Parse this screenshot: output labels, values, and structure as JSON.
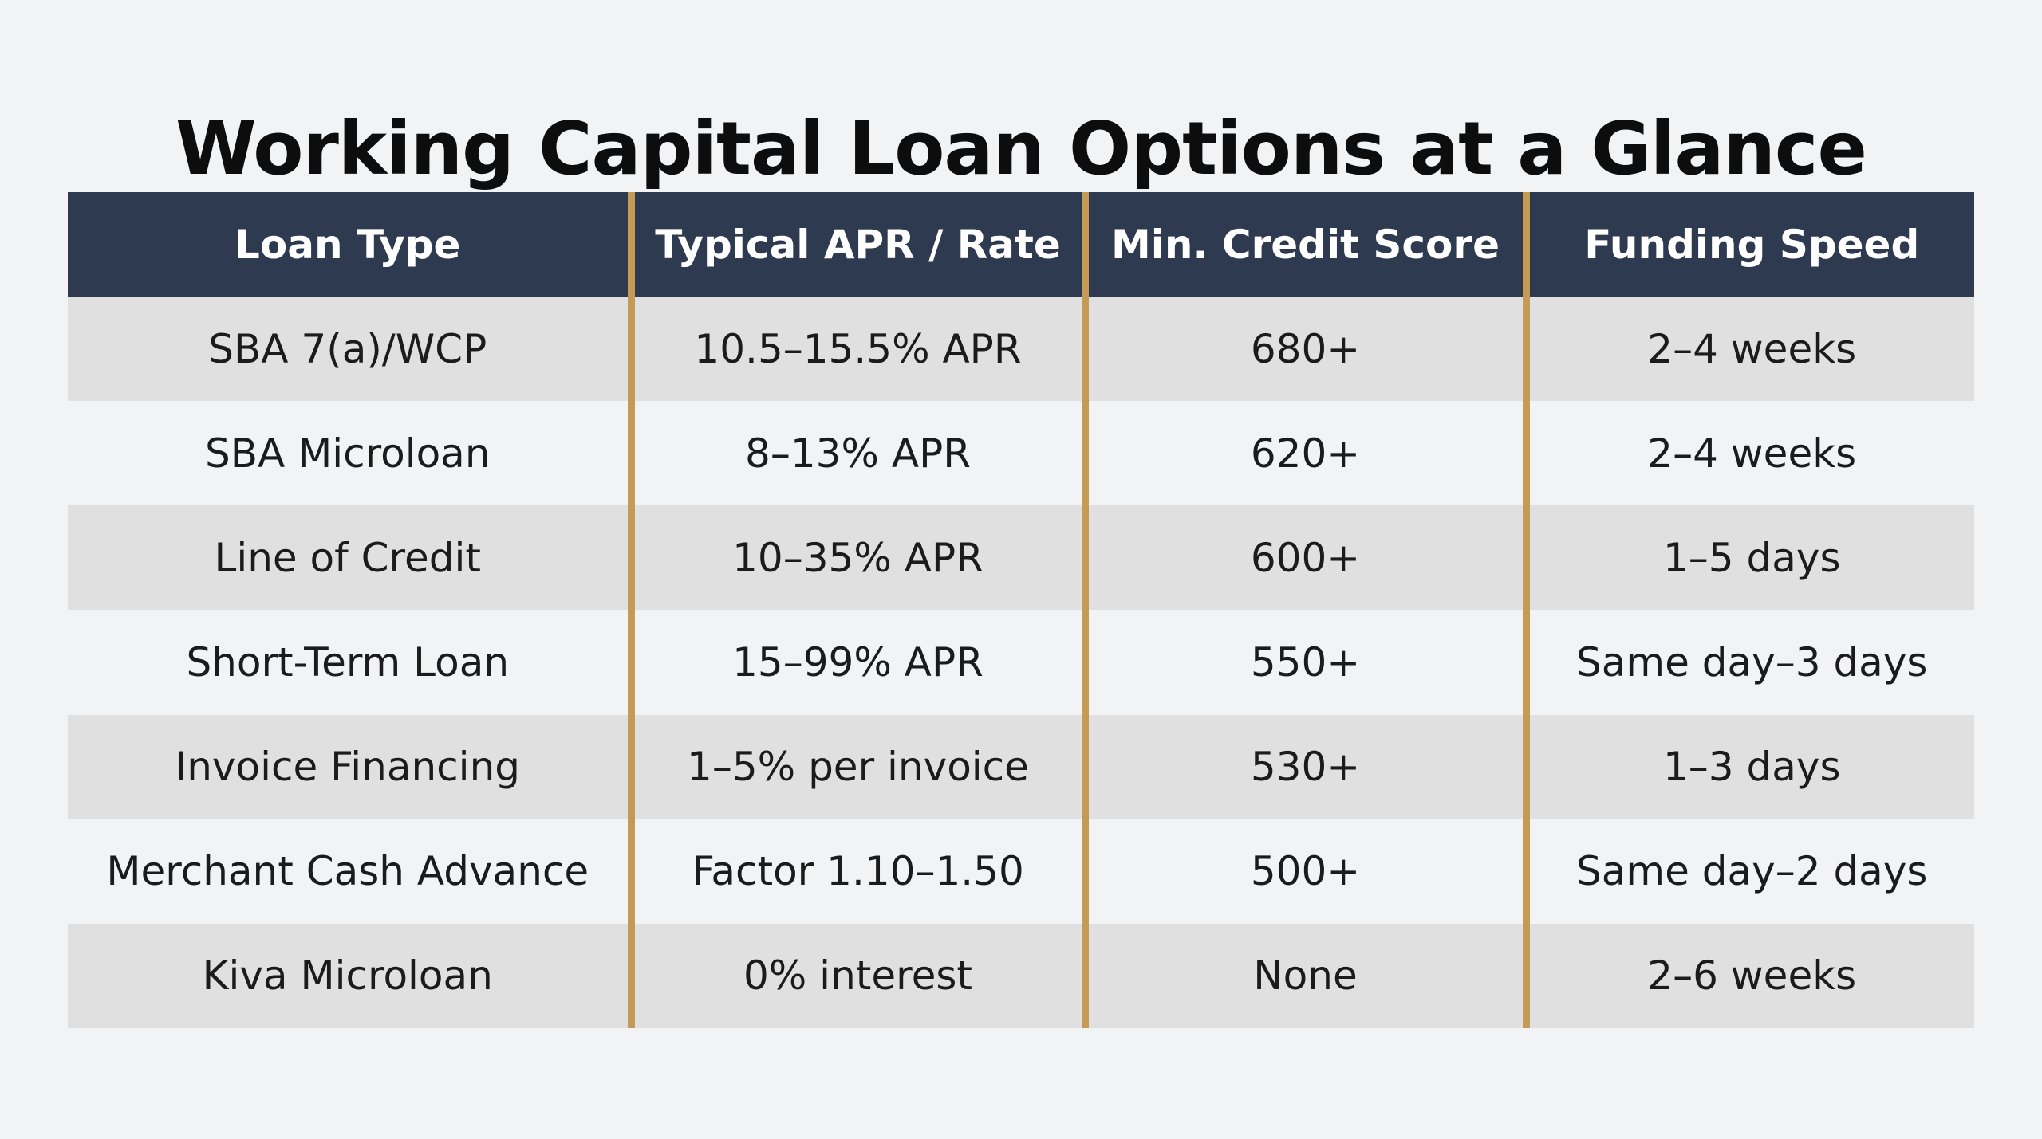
{
  "page": {
    "title": "Working Capital Loan Options at a Glance"
  },
  "chart_data": {
    "type": "table",
    "title": "Working Capital Loan Options at a Glance",
    "columns": [
      "Loan Type",
      "Typical APR / Rate",
      "Min. Credit Score",
      "Funding Speed"
    ],
    "rows": [
      [
        "SBA 7(a)/WCP",
        "10.5–15.5% APR",
        "680+",
        "2–4 weeks"
      ],
      [
        "SBA Microloan",
        "8–13% APR",
        "620+",
        "2–4 weeks"
      ],
      [
        "Line of Credit",
        "10–35% APR",
        "600+",
        "1–5 days"
      ],
      [
        "Short-Term Loan",
        "15–99% APR",
        "550+",
        "Same day–3 days"
      ],
      [
        "Invoice Financing",
        "1–5% per invoice",
        "530+",
        "1–3 days"
      ],
      [
        "Merchant Cash Advance",
        "Factor 1.10–1.50",
        "500+",
        "Same day–2 days"
      ],
      [
        "Kiva Microloan",
        "0% interest",
        "None",
        "2–6 weeks"
      ]
    ]
  },
  "colors": {
    "header_bg": "#2e3a4f",
    "header_text": "#ffffff",
    "column_separator": "#c49a55",
    "row_shaded": "#e0e0e0",
    "row_plain": "#f2f3f5",
    "page_bg": "#f2f3f5"
  }
}
